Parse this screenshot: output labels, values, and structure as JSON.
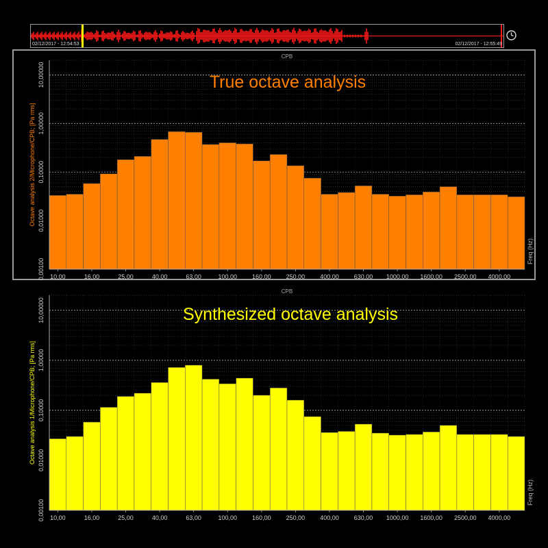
{
  "overview": {
    "start_time": "02/12/2017 - 12:54:53",
    "end_time": "02/12/2017 - 12:55:49",
    "waveform_color": "#ff1a1a",
    "cursor_color": "#ffff00"
  },
  "chart_data": [
    {
      "type": "bar",
      "panel_label": "CPB",
      "title": "True octave analysis",
      "ylabel": "Octave analysis 2/Microphone/CPB; [Pa rms]",
      "xlabel": "Freq (Hz)",
      "yscale": "log",
      "ylim": [
        0.001,
        20
      ],
      "color": "#ff7f00",
      "title_color": "#ff7f00",
      "yticks": [
        "10,00000",
        "1,00000",
        "0,10000",
        "0,01000",
        "0,00100"
      ],
      "xticks": [
        "10,00",
        "16,00",
        "25,00",
        "40,00",
        "63,00",
        "100,00",
        "160,00",
        "250,00",
        "400,00",
        "630,00",
        "1000,00",
        "1600,00",
        "2500,00",
        "4000,00"
      ],
      "categories": [
        "10",
        "12.5",
        "16",
        "20",
        "25",
        "31.5",
        "40",
        "50",
        "63",
        "80",
        "100",
        "125",
        "160",
        "200",
        "250",
        "315",
        "400",
        "500",
        "630",
        "800",
        "1000",
        "1250",
        "1600",
        "2000",
        "2500",
        "3150",
        "4000",
        "5000"
      ],
      "values": [
        0.033,
        0.035,
        0.058,
        0.092,
        0.18,
        0.21,
        0.47,
        0.68,
        0.66,
        0.37,
        0.4,
        0.38,
        0.17,
        0.23,
        0.135,
        0.075,
        0.035,
        0.038,
        0.052,
        0.035,
        0.032,
        0.034,
        0.039,
        0.05,
        0.034,
        0.034,
        0.034,
        0.031
      ]
    },
    {
      "type": "bar",
      "panel_label": "CPB",
      "title": "Synthesized octave analysis",
      "ylabel": "Octave analysis 1/Microphone/CPB; [Pa rms]",
      "xlabel": "Freq (Hz)",
      "yscale": "log",
      "ylim": [
        0.001,
        20
      ],
      "color": "#ffff00",
      "title_color": "#ffff00",
      "yticks": [
        "10,00000",
        "1,00000",
        "0,10000",
        "0,01000",
        "0,00100"
      ],
      "xticks": [
        "10,00",
        "16,00",
        "25,00",
        "40,00",
        "63,00",
        "100,00",
        "160,00",
        "250,00",
        "400,00",
        "630,00",
        "1000,00",
        "1600,00",
        "2500,00",
        "4000,00"
      ],
      "categories": [
        "10",
        "12.5",
        "16",
        "20",
        "25",
        "31.5",
        "40",
        "50",
        "63",
        "80",
        "100",
        "125",
        "160",
        "200",
        "250",
        "315",
        "400",
        "500",
        "630",
        "800",
        "1000",
        "1250",
        "1600",
        "2000",
        "2500",
        "3150",
        "4000",
        "5000"
      ],
      "values": [
        0.027,
        0.03,
        0.058,
        0.115,
        0.19,
        0.22,
        0.36,
        0.72,
        0.8,
        0.42,
        0.34,
        0.44,
        0.2,
        0.28,
        0.16,
        0.075,
        0.036,
        0.038,
        0.053,
        0.035,
        0.032,
        0.033,
        0.037,
        0.05,
        0.033,
        0.033,
        0.033,
        0.03
      ]
    }
  ]
}
